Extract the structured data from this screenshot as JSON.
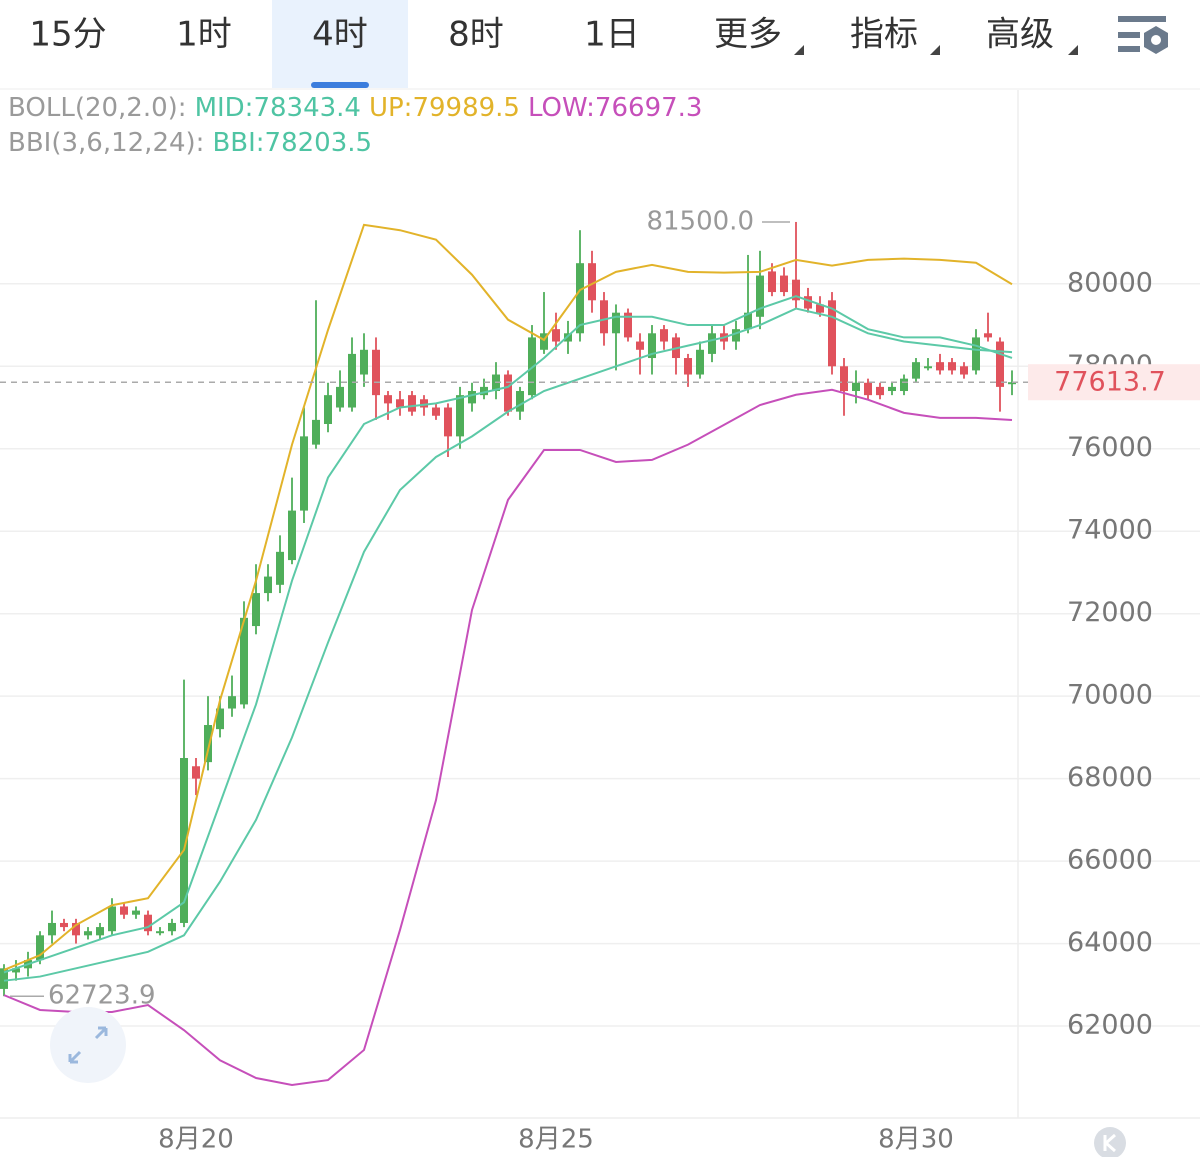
{
  "tabs": [
    "15分",
    "1时",
    "4时",
    "8时",
    "1日",
    "更多",
    "指标",
    "高级"
  ],
  "active_tab": 2,
  "chart_data": {
    "type": "candlestick",
    "legend": [
      [
        {
          "text": "BOLL(20,2.0):",
          "color": "#9a9a9a"
        },
        {
          "text": "MID:78343.4",
          "color": "#4fc4a3"
        },
        {
          "text": "UP:79989.5",
          "color": "#e2b32a"
        },
        {
          "text": "LOW:76697.3",
          "color": "#c64fba"
        }
      ],
      [
        {
          "text": "BBI(3,6,12,24):",
          "color": "#9a9a9a"
        },
        {
          "text": "BBI:78203.5",
          "color": "#4fc4a3"
        }
      ]
    ],
    "categories": [
      null,
      null,
      null,
      null,
      null,
      null,
      null,
      null,
      null,
      null,
      null,
      null,
      null,
      null,
      null,
      null,
      "8月20",
      null,
      null,
      null,
      null,
      null,
      null,
      null,
      null,
      null,
      null,
      null,
      null,
      null,
      null,
      null,
      null,
      null,
      null,
      null,
      null,
      null,
      null,
      null,
      null,
      null,
      null,
      null,
      null,
      null,
      "8月25",
      null,
      null,
      null,
      null,
      null,
      null,
      null,
      null,
      null,
      null,
      null,
      null,
      null,
      null,
      null,
      null,
      null,
      null,
      null,
      null,
      null,
      null,
      null,
      null,
      null,
      null,
      null,
      null,
      null,
      "8月30",
      null,
      null,
      null,
      null,
      null,
      null,
      null,
      null
    ],
    "open": [
      62900,
      63300,
      63400,
      63600,
      64200,
      64500,
      64500,
      64200,
      64200,
      64300,
      64900,
      64700,
      64700,
      64300,
      64300,
      64500,
      68300,
      68400,
      69200,
      69700,
      69800,
      71700,
      72500,
      72700,
      73300,
      74500,
      76100,
      76600,
      77000,
      77000,
      77800,
      78400,
      77300,
      77200,
      77300,
      77200,
      77000,
      77000,
      76300,
      77100,
      77300,
      77400,
      77800,
      76900,
      77300,
      78400,
      78900,
      78600,
      78800,
      80500,
      79600,
      78800,
      79300,
      78600,
      78200,
      78900,
      78700,
      78200,
      77800,
      78300,
      78800,
      78600,
      78900,
      79200,
      80300,
      80200,
      80100,
      79700,
      79500,
      79600,
      78000,
      77400,
      77600,
      77500,
      77400,
      77400,
      77700,
      78000,
      78100,
      78100,
      78000,
      77900,
      78800,
      78600,
      77600
    ],
    "high": [
      63500,
      63600,
      63800,
      64300,
      64800,
      64600,
      64600,
      64400,
      64500,
      65100,
      65000,
      64900,
      64800,
      64400,
      64600,
      70400,
      68500,
      70000,
      70000,
      70500,
      72300,
      73200,
      73200,
      73900,
      75300,
      77000,
      79600,
      77600,
      77900,
      78700,
      78800,
      78700,
      77400,
      77400,
      77400,
      77300,
      77100,
      77100,
      77500,
      77600,
      77700,
      78100,
      77900,
      77500,
      79000,
      79800,
      79300,
      79100,
      81300,
      80800,
      79800,
      79500,
      79400,
      78800,
      79000,
      79000,
      78800,
      78300,
      78600,
      79000,
      79000,
      79100,
      80700,
      80800,
      80500,
      80400,
      81500,
      79900,
      79700,
      79800,
      78200,
      77900,
      77700,
      77600,
      77600,
      77800,
      78200,
      78200,
      78300,
      78200,
      78100,
      78900,
      79300,
      78700,
      77900
    ],
    "low": [
      62723.9,
      63100,
      63200,
      63500,
      64000,
      64300,
      64000,
      64100,
      64100,
      64200,
      64600,
      64600,
      64200,
      64200,
      64200,
      64400,
      67600,
      68200,
      69000,
      69500,
      69700,
      71500,
      72300,
      72500,
      73200,
      74200,
      76000,
      76400,
      76900,
      76900,
      77500,
      76700,
      76700,
      76800,
      76800,
      76800,
      76700,
      75800,
      76000,
      76900,
      77200,
      77200,
      76800,
      76700,
      77200,
      78300,
      78400,
      78300,
      78600,
      79300,
      78500,
      77900,
      78600,
      77800,
      77800,
      78400,
      77800,
      77500,
      77700,
      78100,
      78400,
      78400,
      78800,
      78900,
      79700,
      79700,
      79400,
      79300,
      79200,
      77800,
      76800,
      77100,
      77200,
      77200,
      77300,
      77300,
      77600,
      77900,
      77800,
      77800,
      77700,
      77800,
      78600,
      76900,
      77300
    ],
    "close": [
      63400,
      63400,
      63600,
      64200,
      64500,
      64400,
      64200,
      64300,
      64400,
      64900,
      64700,
      64800,
      64300,
      64300,
      64500,
      68500,
      68000,
      69300,
      69700,
      70000,
      71900,
      72500,
      72900,
      73500,
      74500,
      76300,
      76700,
      77300,
      77500,
      78300,
      78400,
      77300,
      77100,
      77000,
      76900,
      77000,
      76800,
      76300,
      77300,
      77400,
      77500,
      77800,
      76900,
      77400,
      78700,
      78800,
      78600,
      78800,
      80500,
      79600,
      78800,
      79300,
      78700,
      78400,
      78800,
      78600,
      78200,
      77800,
      78400,
      78800,
      78600,
      78900,
      79300,
      80200,
      79800,
      79800,
      79600,
      79400,
      79300,
      78000,
      77400,
      77600,
      77300,
      77300,
      77500,
      77700,
      78100,
      78000,
      77900,
      77900,
      77800,
      78700,
      78700,
      77500,
      77613.7
    ],
    "up_color": "#4fae5a",
    "down_color": "#e0525c",
    "overlays": {
      "x": [
        0,
        3,
        6,
        9,
        12,
        15,
        18,
        21,
        24,
        27,
        30,
        33,
        36,
        39,
        42,
        45,
        48,
        51,
        54,
        57,
        60,
        63,
        66,
        69,
        72,
        75,
        78,
        81,
        84
      ],
      "series": [
        {
          "color": "#e2b32a",
          "values": [
            63360,
            63720,
            64450,
            64930,
            65100,
            66270,
            69900,
            72800,
            76100,
            78880,
            81430,
            81300,
            81070,
            80220,
            79130,
            78640,
            79850,
            80290,
            80460,
            80290,
            80270,
            80290,
            80580,
            80440,
            80580,
            80610,
            80580,
            80510,
            79989.5
          ]
        },
        {
          "color": "#5cc9a7",
          "values": [
            63100,
            63200,
            63400,
            63600,
            63800,
            64200,
            65500,
            67000,
            69000,
            71300,
            73500,
            75000,
            75800,
            76300,
            76900,
            77400,
            77700,
            78000,
            78300,
            78500,
            78700,
            79000,
            79400,
            79200,
            78800,
            78600,
            78500,
            78400,
            78343.4
          ]
        },
        {
          "color": "#c64fba",
          "values": [
            62750,
            62390,
            62340,
            62340,
            62510,
            61900,
            61170,
            60740,
            60570,
            60690,
            61420,
            64330,
            67480,
            72090,
            74760,
            75970,
            75970,
            75680,
            75730,
            76100,
            76580,
            77060,
            77310,
            77430,
            77190,
            76870,
            76750,
            76750,
            76697.3
          ]
        },
        {
          "color": "#5cc9a7",
          "values": [
            63300,
            63600,
            63900,
            64200,
            64400,
            65000,
            67400,
            69800,
            72800,
            75300,
            76600,
            77000,
            77100,
            77300,
            77500,
            78200,
            79000,
            79200,
            79200,
            79000,
            79000,
            79400,
            79700,
            79400,
            78900,
            78700,
            78700,
            78500,
            78203.5
          ]
        }
      ]
    },
    "high_label": "81500.0",
    "high_index": 66,
    "low_label": "62723.9",
    "low_index": 0,
    "last_price_label": "77613.7",
    "ylim": [
      59770,
      84700
    ],
    "yticks": [
      62000,
      64000,
      66000,
      68000,
      70000,
      72000,
      74000,
      76000,
      78000,
      80000
    ],
    "grid": true
  }
}
